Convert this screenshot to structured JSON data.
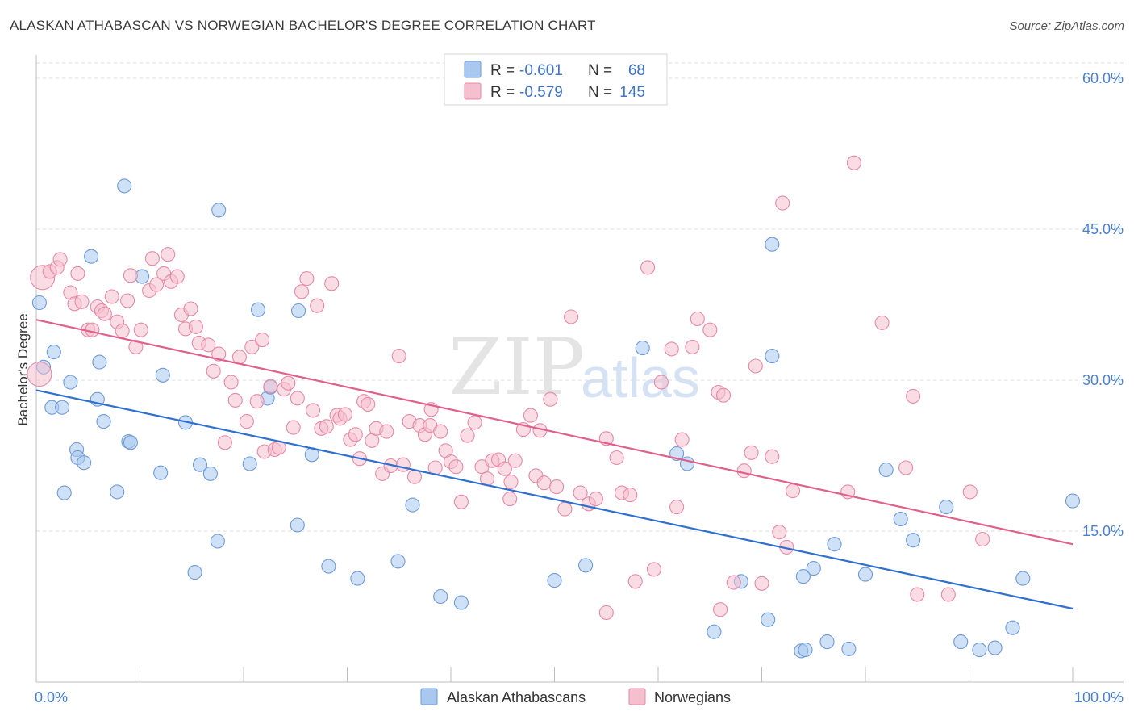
{
  "title": "ALASKAN ATHABASCAN VS NORWEGIAN BACHELOR'S DEGREE CORRELATION CHART",
  "source": "Source: ZipAtlas.com",
  "watermark": {
    "part1": "ZIP",
    "part2": "atlas"
  },
  "legend": {
    "r_label": "R =",
    "n_label": "N =",
    "rows": [
      {
        "r": "-0.601",
        "n": "68",
        "color": "#a8c8f0",
        "stroke": "#6f9ad8"
      },
      {
        "r": "-0.579",
        "n": "145",
        "color": "#f6bfd0",
        "stroke": "#e58aa8"
      }
    ]
  },
  "bottom_legend": [
    "Alaskan Athabascans",
    "Norwegians"
  ],
  "chart_data": {
    "type": "scatter",
    "xlabel": "",
    "ylabel": "Bachelor's Degree",
    "xlim": [
      0,
      100
    ],
    "ylim": [
      0,
      62
    ],
    "x_tick_labels": [
      {
        "value": 0,
        "label": "0.0%"
      },
      {
        "value": 100,
        "label": "100.0%"
      }
    ],
    "y_ticks": [
      {
        "value": 15,
        "label": "15.0%"
      },
      {
        "value": 30,
        "label": "30.0%"
      },
      {
        "value": 45,
        "label": "45.0%"
      },
      {
        "value": 60,
        "label": "60.0%"
      }
    ],
    "grid": true,
    "series": [
      {
        "name": "Alaskan Athabascans",
        "color": "#a8c8f0",
        "stroke": "#6f9ad8",
        "trend_color": "#2f6fd0",
        "trend": {
          "x": [
            0,
            100
          ],
          "y": [
            29.0,
            7.3
          ]
        },
        "points": [
          [
            0.3,
            37.7
          ],
          [
            0.7,
            31.3
          ],
          [
            1.5,
            27.3
          ],
          [
            1.7,
            32.8
          ],
          [
            2.5,
            27.3
          ],
          [
            3.3,
            29.8
          ],
          [
            3.9,
            23.1
          ],
          [
            4.0,
            22.3
          ],
          [
            4.6,
            21.8
          ],
          [
            2.7,
            18.8
          ],
          [
            5.3,
            42.3
          ],
          [
            5.9,
            28.1
          ],
          [
            6.1,
            31.8
          ],
          [
            6.5,
            25.9
          ],
          [
            7.8,
            18.9
          ],
          [
            8.5,
            49.3
          ],
          [
            8.9,
            23.9
          ],
          [
            9.1,
            23.8
          ],
          [
            10.2,
            40.3
          ],
          [
            12.0,
            20.8
          ],
          [
            12.2,
            30.5
          ],
          [
            14.4,
            25.8
          ],
          [
            15.3,
            10.9
          ],
          [
            15.8,
            21.6
          ],
          [
            16.8,
            20.7
          ],
          [
            17.5,
            14.0
          ],
          [
            17.6,
            46.9
          ],
          [
            20.6,
            21.7
          ],
          [
            21.4,
            37.0
          ],
          [
            22.3,
            28.2
          ],
          [
            22.6,
            29.3
          ],
          [
            25.2,
            15.6
          ],
          [
            25.3,
            36.9
          ],
          [
            26.6,
            22.6
          ],
          [
            28.2,
            11.5
          ],
          [
            31.0,
            10.3
          ],
          [
            34.9,
            12.0
          ],
          [
            36.3,
            17.6
          ],
          [
            39.0,
            8.5
          ],
          [
            41.0,
            7.9
          ],
          [
            50.0,
            10.1
          ],
          [
            53.0,
            11.6
          ],
          [
            58.5,
            33.2
          ],
          [
            61.8,
            22.7
          ],
          [
            62.8,
            21.7
          ],
          [
            65.4,
            5.0
          ],
          [
            68.0,
            10.0
          ],
          [
            71.0,
            43.5
          ],
          [
            71.0,
            32.4
          ],
          [
            70.6,
            6.2
          ],
          [
            73.8,
            3.1
          ],
          [
            74.0,
            10.5
          ],
          [
            74.2,
            3.2
          ],
          [
            75.0,
            11.3
          ],
          [
            76.3,
            4.0
          ],
          [
            77.0,
            13.7
          ],
          [
            78.4,
            3.3
          ],
          [
            80.0,
            10.7
          ],
          [
            82.0,
            21.1
          ],
          [
            83.4,
            16.2
          ],
          [
            84.6,
            14.1
          ],
          [
            87.8,
            17.4
          ],
          [
            89.2,
            4.0
          ],
          [
            91.0,
            3.2
          ],
          [
            92.5,
            3.4
          ],
          [
            94.2,
            5.4
          ],
          [
            95.2,
            10.3
          ],
          [
            100.0,
            18.0
          ]
        ]
      },
      {
        "name": "Norwegians",
        "color": "#f6bfd0",
        "stroke": "#e58aa8",
        "trend_color": "#e0608d",
        "trend": {
          "x": [
            0,
            100
          ],
          "y": [
            36.0,
            13.7
          ]
        },
        "points": [
          [
            0.6,
            40.2
          ],
          [
            0.3,
            30.6
          ],
          [
            1.3,
            40.8
          ],
          [
            2.0,
            41.2
          ],
          [
            2.3,
            42.0
          ],
          [
            3.3,
            38.7
          ],
          [
            3.7,
            37.6
          ],
          [
            4.0,
            40.6
          ],
          [
            4.4,
            37.8
          ],
          [
            5.0,
            35.0
          ],
          [
            5.4,
            35.0
          ],
          [
            5.9,
            37.3
          ],
          [
            6.3,
            36.9
          ],
          [
            6.6,
            36.6
          ],
          [
            7.3,
            38.3
          ],
          [
            7.8,
            35.8
          ],
          [
            8.3,
            34.9
          ],
          [
            8.8,
            37.9
          ],
          [
            9.1,
            40.4
          ],
          [
            9.6,
            33.3
          ],
          [
            10.1,
            35.0
          ],
          [
            10.9,
            38.9
          ],
          [
            11.2,
            42.1
          ],
          [
            11.6,
            39.5
          ],
          [
            12.3,
            40.6
          ],
          [
            12.7,
            42.5
          ],
          [
            13.0,
            39.8
          ],
          [
            13.6,
            40.3
          ],
          [
            14.0,
            36.5
          ],
          [
            14.4,
            35.1
          ],
          [
            14.9,
            37.1
          ],
          [
            15.4,
            35.3
          ],
          [
            15.7,
            33.7
          ],
          [
            16.6,
            33.5
          ],
          [
            17.1,
            30.9
          ],
          [
            17.6,
            32.6
          ],
          [
            18.2,
            23.8
          ],
          [
            18.8,
            29.8
          ],
          [
            19.2,
            28.0
          ],
          [
            19.6,
            32.3
          ],
          [
            20.3,
            25.9
          ],
          [
            20.8,
            33.3
          ],
          [
            21.3,
            27.9
          ],
          [
            21.8,
            34.0
          ],
          [
            22.0,
            22.9
          ],
          [
            22.6,
            29.4
          ],
          [
            23.0,
            23.1
          ],
          [
            23.4,
            23.3
          ],
          [
            23.9,
            29.1
          ],
          [
            24.3,
            29.7
          ],
          [
            24.8,
            25.3
          ],
          [
            25.2,
            28.2
          ],
          [
            25.6,
            38.8
          ],
          [
            26.1,
            40.1
          ],
          [
            26.7,
            27.0
          ],
          [
            27.1,
            37.4
          ],
          [
            27.5,
            25.2
          ],
          [
            28.0,
            25.4
          ],
          [
            28.5,
            39.6
          ],
          [
            29.0,
            26.5
          ],
          [
            29.3,
            26.2
          ],
          [
            29.8,
            26.6
          ],
          [
            30.3,
            24.1
          ],
          [
            30.8,
            24.6
          ],
          [
            31.2,
            22.2
          ],
          [
            31.6,
            27.9
          ],
          [
            32.0,
            27.6
          ],
          [
            32.4,
            24.0
          ],
          [
            32.8,
            25.2
          ],
          [
            33.4,
            20.7
          ],
          [
            33.8,
            24.9
          ],
          [
            34.2,
            21.5
          ],
          [
            35.0,
            32.4
          ],
          [
            35.4,
            21.6
          ],
          [
            36.0,
            25.9
          ],
          [
            36.5,
            20.4
          ],
          [
            37.0,
            25.5
          ],
          [
            37.5,
            24.6
          ],
          [
            38.0,
            25.5
          ],
          [
            38.5,
            21.3
          ],
          [
            39.0,
            24.9
          ],
          [
            39.5,
            23.0
          ],
          [
            40.0,
            21.9
          ],
          [
            40.5,
            21.4
          ],
          [
            41.0,
            17.9
          ],
          [
            41.6,
            24.5
          ],
          [
            42.3,
            25.8
          ],
          [
            43.0,
            21.4
          ],
          [
            43.5,
            20.2
          ],
          [
            44.0,
            22.0
          ],
          [
            44.6,
            22.1
          ],
          [
            45.2,
            21.2
          ],
          [
            45.7,
            18.2
          ],
          [
            46.2,
            22.0
          ],
          [
            47.0,
            25.1
          ],
          [
            47.7,
            26.5
          ],
          [
            48.2,
            20.5
          ],
          [
            48.6,
            25.0
          ],
          [
            49.0,
            19.8
          ],
          [
            49.6,
            28.1
          ],
          [
            50.2,
            19.4
          ],
          [
            51.0,
            17.2
          ],
          [
            51.6,
            36.3
          ],
          [
            52.5,
            18.8
          ],
          [
            53.3,
            17.7
          ],
          [
            54.0,
            18.2
          ],
          [
            55.0,
            24.2
          ],
          [
            56.0,
            22.3
          ],
          [
            56.5,
            18.8
          ],
          [
            57.3,
            18.6
          ],
          [
            57.8,
            10.0
          ],
          [
            59.0,
            41.2
          ],
          [
            59.6,
            11.2
          ],
          [
            60.3,
            29.8
          ],
          [
            61.3,
            33.1
          ],
          [
            61.8,
            17.4
          ],
          [
            62.3,
            24.1
          ],
          [
            63.3,
            33.3
          ],
          [
            63.8,
            36.1
          ],
          [
            65.0,
            35.0
          ],
          [
            65.8,
            28.8
          ],
          [
            66.3,
            28.5
          ],
          [
            67.3,
            9.9
          ],
          [
            68.3,
            21.0
          ],
          [
            69.0,
            22.8
          ],
          [
            69.4,
            31.4
          ],
          [
            70.0,
            9.8
          ],
          [
            71.0,
            22.4
          ],
          [
            71.7,
            14.9
          ],
          [
            72.0,
            47.6
          ],
          [
            72.4,
            13.4
          ],
          [
            73.0,
            19.0
          ],
          [
            78.3,
            18.9
          ],
          [
            78.9,
            51.6
          ],
          [
            81.6,
            35.7
          ],
          [
            83.9,
            21.3
          ],
          [
            84.6,
            28.4
          ],
          [
            85.0,
            8.7
          ],
          [
            88.0,
            8.7
          ],
          [
            90.1,
            18.9
          ],
          [
            91.3,
            14.2
          ],
          [
            55.0,
            6.9
          ],
          [
            66.0,
            7.2
          ],
          [
            38.1,
            27.1
          ],
          [
            45.8,
            19.9
          ]
        ]
      }
    ]
  }
}
